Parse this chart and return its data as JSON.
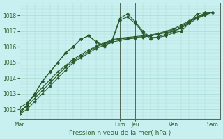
{
  "background_color": "#c8f0f0",
  "grid_color": "#a8d8d0",
  "line_color": "#2a5a2a",
  "marker_color": "#2a5a2a",
  "xlabel": "Pression niveau de la mer( hPa )",
  "ylim": [
    1011.4,
    1018.8
  ],
  "yticks": [
    1012,
    1013,
    1014,
    1015,
    1016,
    1017,
    1018
  ],
  "xtick_labels": [
    "Mar",
    "Dim",
    "Jeu",
    "Ven",
    "Sam"
  ],
  "xtick_positions": [
    0,
    13,
    15,
    20,
    25
  ],
  "vline_positions": [
    0,
    13,
    15,
    20,
    25
  ],
  "xlim": [
    0,
    26
  ],
  "series": [
    {
      "x": [
        0,
        1,
        2,
        3,
        4,
        5,
        6,
        7,
        8,
        9,
        10,
        11,
        12,
        13,
        14,
        15,
        16,
        17,
        18,
        19,
        20,
        21,
        22,
        23,
        24,
        25
      ],
      "y": [
        1011.7,
        1012.0,
        1012.5,
        1013.0,
        1013.5,
        1014.0,
        1014.5,
        1015.0,
        1015.3,
        1015.6,
        1015.9,
        1016.1,
        1016.3,
        1016.4,
        1016.5,
        1016.55,
        1016.6,
        1016.7,
        1016.8,
        1016.9,
        1017.0,
        1017.2,
        1017.5,
        1017.8,
        1018.0,
        1018.2
      ],
      "with_markers": false
    },
    {
      "x": [
        0,
        1,
        2,
        3,
        4,
        5,
        6,
        7,
        8,
        9,
        10,
        11,
        12,
        13,
        14,
        15,
        16,
        17,
        18,
        19,
        20,
        21,
        22,
        23,
        24,
        25
      ],
      "y": [
        1011.9,
        1012.2,
        1012.7,
        1013.2,
        1013.7,
        1014.2,
        1014.7,
        1015.1,
        1015.4,
        1015.7,
        1016.0,
        1016.2,
        1016.4,
        1016.5,
        1016.55,
        1016.6,
        1016.65,
        1016.7,
        1016.8,
        1016.95,
        1017.1,
        1017.3,
        1017.6,
        1017.85,
        1018.05,
        1018.2
      ],
      "with_markers": false
    },
    {
      "x": [
        0,
        1,
        2,
        3,
        4,
        5,
        6,
        7,
        8,
        9,
        10,
        11,
        12,
        13,
        14,
        15,
        16,
        17,
        18,
        19,
        20,
        21,
        22,
        23,
        24,
        25
      ],
      "y": [
        1012.1,
        1012.4,
        1012.9,
        1013.4,
        1013.9,
        1014.4,
        1014.8,
        1015.2,
        1015.5,
        1015.8,
        1016.05,
        1016.25,
        1016.45,
        1016.55,
        1016.6,
        1016.65,
        1016.7,
        1016.75,
        1016.85,
        1017.0,
        1017.15,
        1017.4,
        1017.65,
        1017.9,
        1018.1,
        1018.2
      ],
      "with_markers": false
    },
    {
      "x": [
        0,
        1,
        2,
        3,
        4,
        5,
        6,
        7,
        8,
        9,
        10,
        11,
        12,
        13,
        14,
        15,
        16,
        17,
        18,
        19,
        20,
        21,
        22,
        23,
        24,
        25
      ],
      "y": [
        1011.7,
        1012.3,
        1013.0,
        1013.8,
        1014.4,
        1015.0,
        1015.6,
        1016.0,
        1016.5,
        1016.7,
        1016.3,
        1016.1,
        1016.4,
        1017.8,
        1018.1,
        1017.6,
        1017.0,
        1016.6,
        1016.6,
        1016.7,
        1016.9,
        1017.0,
        1017.5,
        1018.1,
        1018.2,
        1018.2
      ],
      "with_markers": true
    },
    {
      "x": [
        0,
        1,
        2,
        3,
        4,
        5,
        6,
        7,
        8,
        9,
        10,
        11,
        12,
        13,
        14,
        15,
        16,
        17,
        18,
        19,
        20,
        21,
        22,
        23,
        24,
        25
      ],
      "y": [
        1011.7,
        1012.3,
        1013.0,
        1013.8,
        1014.4,
        1015.0,
        1015.6,
        1016.0,
        1016.5,
        1016.7,
        1016.3,
        1016.0,
        1016.3,
        1017.7,
        1017.9,
        1017.5,
        1016.9,
        1016.5,
        1016.65,
        1016.8,
        1017.0,
        1017.2,
        1017.6,
        1017.9,
        1018.15,
        1018.2
      ],
      "with_markers": true
    }
  ]
}
